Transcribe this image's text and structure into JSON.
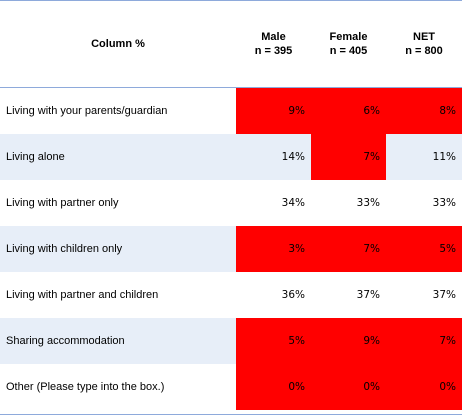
{
  "chart_data": {
    "type": "table",
    "header_label": "Column %",
    "columns": [
      {
        "name": "Male",
        "n": "n = 395"
      },
      {
        "name": "Female",
        "n": "n = 405"
      },
      {
        "name": "NET",
        "n": "n = 800"
      }
    ],
    "rows": [
      {
        "label": "Living with your parents/guardian",
        "values": [
          "9%",
          "6%",
          "8%"
        ],
        "highlight": [
          true,
          true,
          true
        ],
        "shaded": false
      },
      {
        "label": "Living alone",
        "values": [
          "14%",
          "7%",
          "11%"
        ],
        "highlight": [
          false,
          true,
          false
        ],
        "shaded": true
      },
      {
        "label": "Living with partner only",
        "values": [
          "34%",
          "33%",
          "33%"
        ],
        "highlight": [
          false,
          false,
          false
        ],
        "shaded": false
      },
      {
        "label": "Living with children only",
        "values": [
          "3%",
          "7%",
          "5%"
        ],
        "highlight": [
          true,
          true,
          true
        ],
        "shaded": true
      },
      {
        "label": "Living with partner and children",
        "values": [
          "36%",
          "37%",
          "37%"
        ],
        "highlight": [
          false,
          false,
          false
        ],
        "shaded": false
      },
      {
        "label": "Sharing accommodation",
        "values": [
          "5%",
          "9%",
          "7%"
        ],
        "highlight": [
          true,
          true,
          true
        ],
        "shaded": true
      },
      {
        "label": "Other (Please type into the box.)",
        "values": [
          "0%",
          "0%",
          "0%"
        ],
        "highlight": [
          true,
          true,
          true
        ],
        "shaded": false
      }
    ],
    "colors": {
      "highlight": "#ff0000",
      "shaded_row": "#e7eef8",
      "rule": "#8eaadb"
    }
  }
}
